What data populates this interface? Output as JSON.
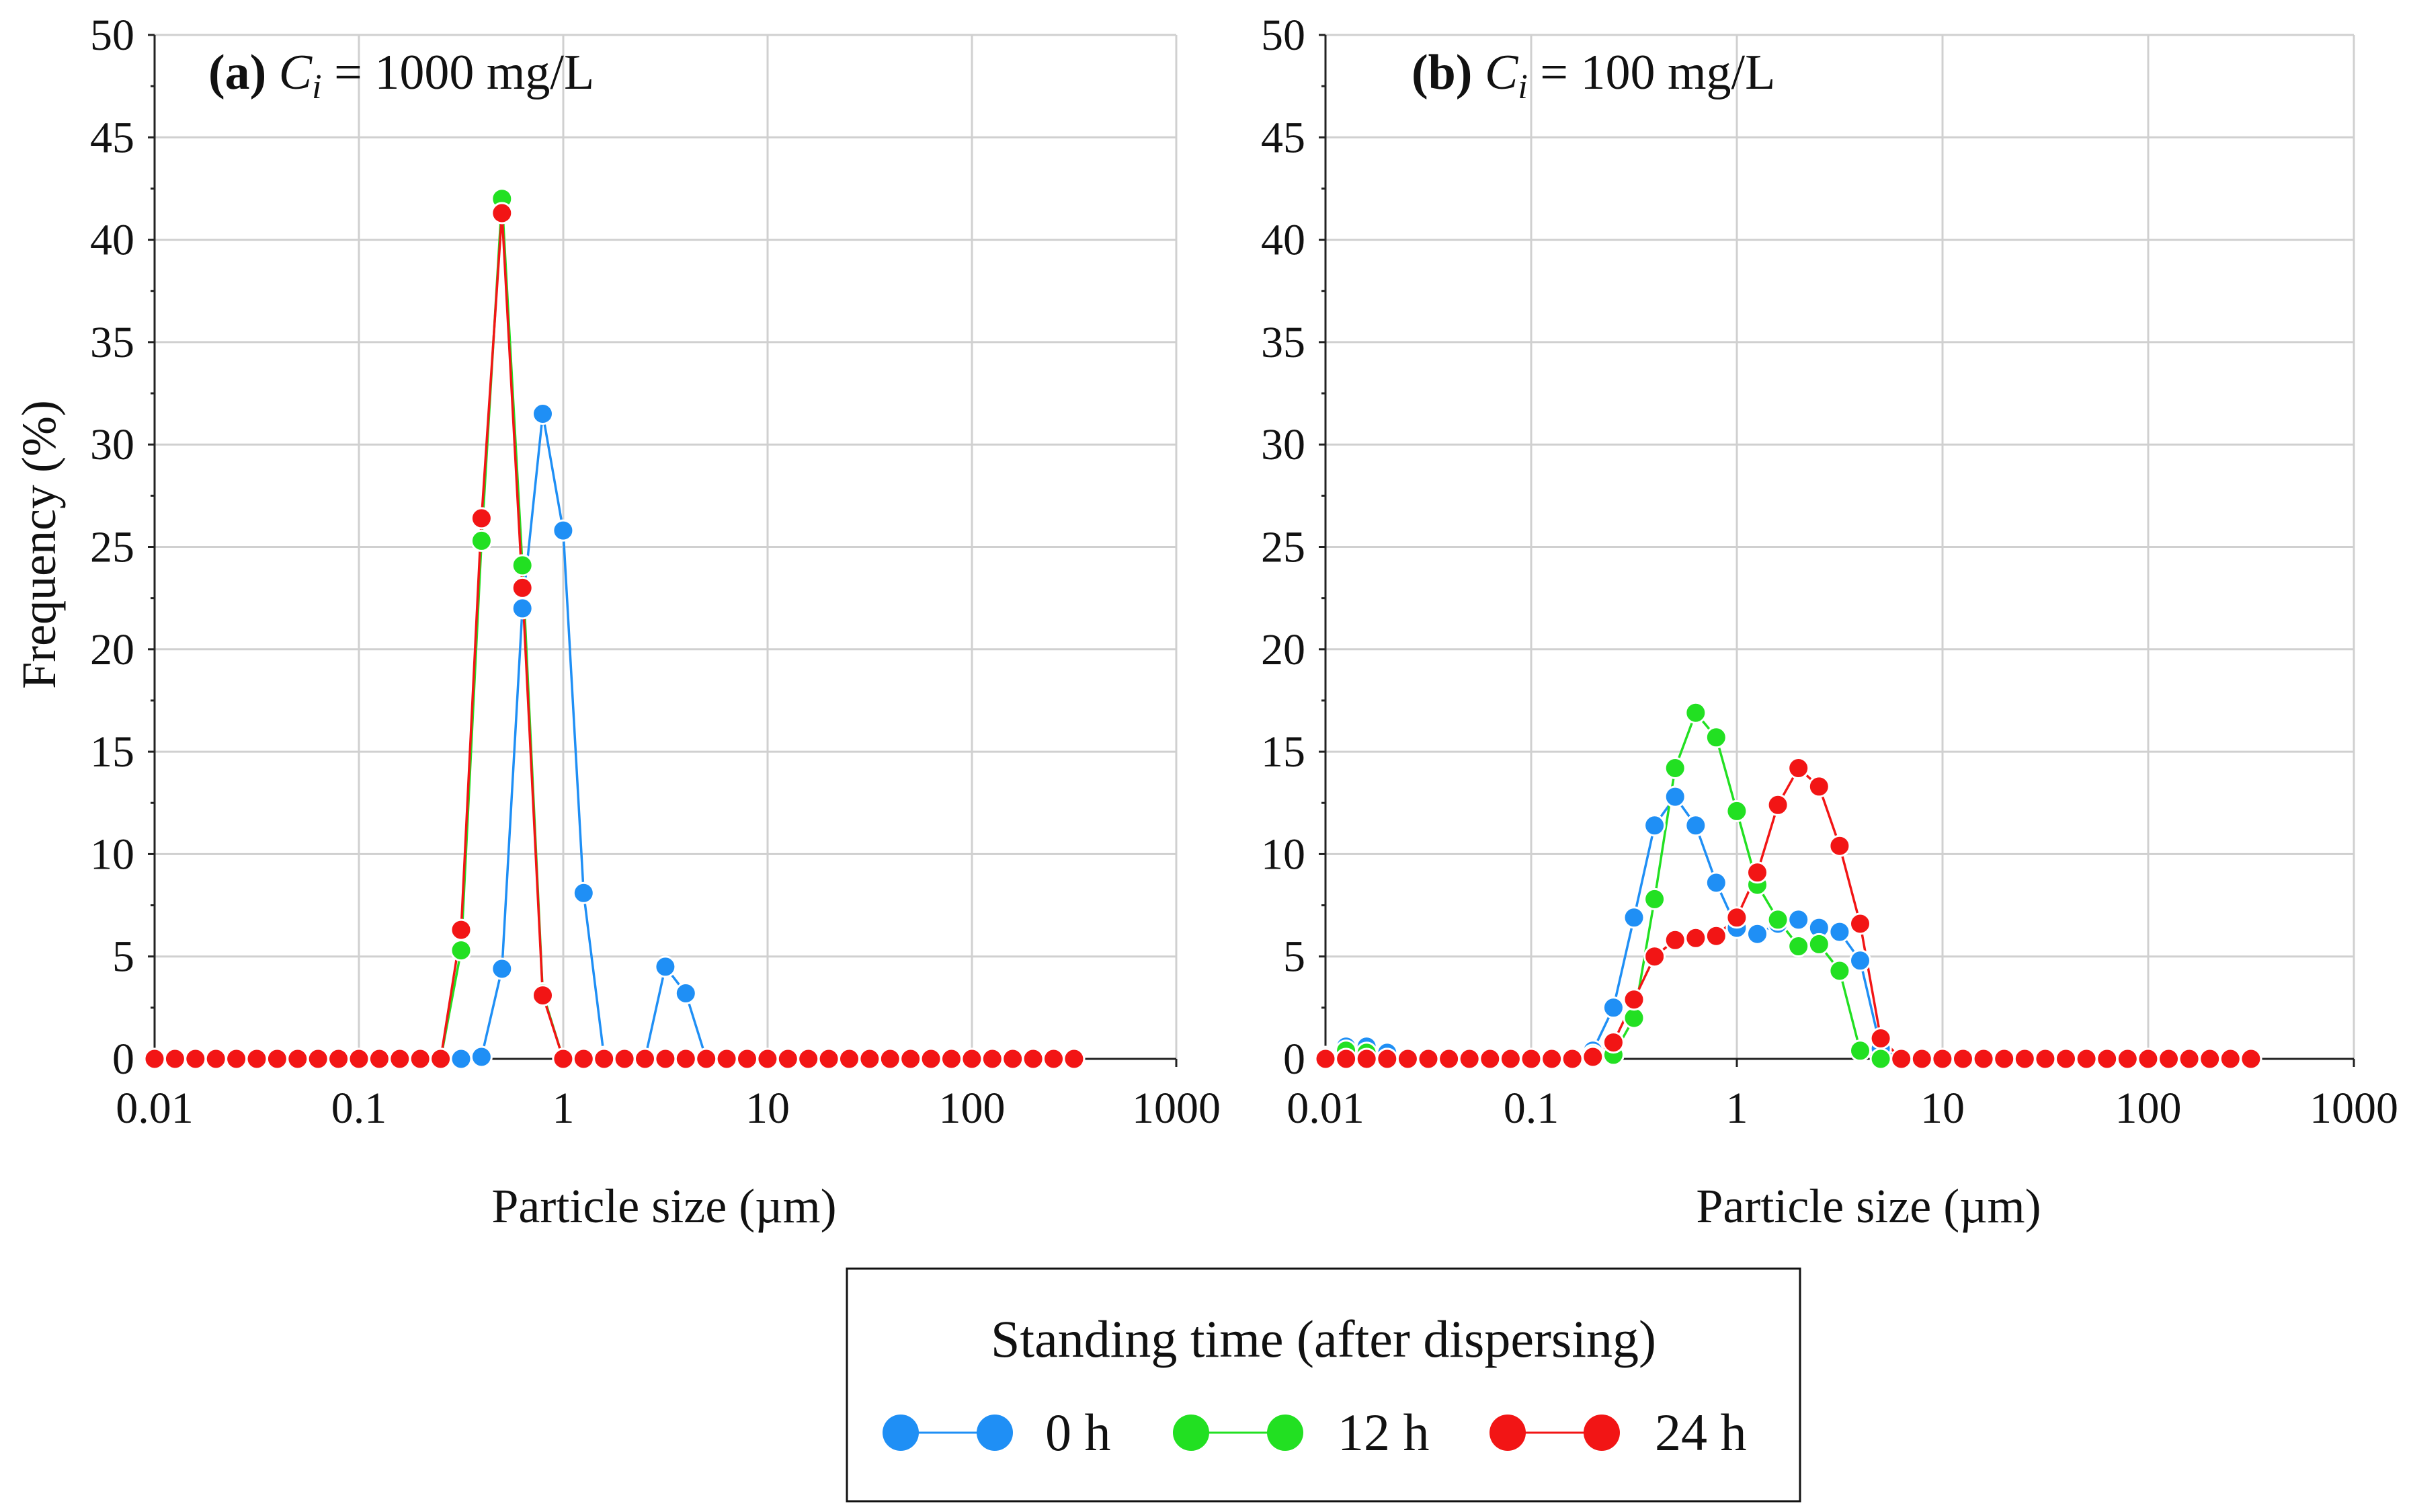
{
  "chart_data": [
    {
      "type": "line",
      "panel_tag": "(a)",
      "panel_symbol": "C",
      "panel_subscript": "i",
      "panel_value": " = 1000 mg/L",
      "xscale": "log",
      "xlim": [
        0.01,
        1000
      ],
      "ylim": [
        0,
        50
      ],
      "yticks": [
        "0",
        "5",
        "10",
        "15",
        "20",
        "25",
        "30",
        "35",
        "40",
        "45",
        "50"
      ],
      "xticks": [
        "0.01",
        "0.1",
        "1",
        "10",
        "100",
        "1000"
      ],
      "xlabel": "Particle size (µm)",
      "ylabel": "Frequency (%)",
      "x_min": 0.01,
      "x_step_ratio": 1.2589,
      "x_count": 46,
      "series": [
        {
          "name": "0 h",
          "color": "#1f8ff5",
          "values": [
            0,
            0,
            0,
            0,
            0,
            0,
            0,
            0,
            0,
            0,
            0,
            0,
            0,
            0,
            0,
            0,
            0.1,
            4.4,
            22,
            31.5,
            25.8,
            8.1,
            0.1,
            0,
            0,
            4.5,
            3.2,
            0,
            0,
            0,
            0,
            0,
            0,
            0,
            0,
            0,
            0,
            0,
            0,
            0,
            0,
            0,
            0,
            0,
            0,
            0
          ]
        },
        {
          "name": "12 h",
          "color": "#22e022",
          "values": [
            0,
            0,
            0,
            0,
            0,
            0,
            0,
            0,
            0,
            0,
            0,
            0,
            0,
            0,
            0,
            5.3,
            25.3,
            42,
            24.1,
            3.2,
            0,
            0,
            0,
            0,
            0,
            0,
            0,
            0,
            0,
            0,
            0,
            0,
            0,
            0,
            0,
            0,
            0,
            0,
            0,
            0,
            0,
            0,
            0,
            0,
            0,
            0
          ]
        },
        {
          "name": "24 h",
          "color": "#f21515",
          "values": [
            0,
            0,
            0,
            0,
            0,
            0,
            0,
            0,
            0,
            0,
            0,
            0,
            0,
            0,
            0,
            6.3,
            26.4,
            41.3,
            23,
            3.1,
            0,
            0,
            0,
            0,
            0,
            0,
            0,
            0,
            0,
            0,
            0,
            0,
            0,
            0,
            0,
            0,
            0,
            0,
            0,
            0,
            0,
            0,
            0,
            0,
            0,
            0
          ]
        }
      ]
    },
    {
      "type": "line",
      "panel_tag": "(b)",
      "panel_symbol": "C",
      "panel_subscript": "i",
      "panel_value": " = 100 mg/L",
      "xscale": "log",
      "xlim": [
        0.01,
        1000
      ],
      "ylim": [
        0,
        50
      ],
      "yticks": [
        "0",
        "5",
        "10",
        "15",
        "20",
        "25",
        "30",
        "35",
        "40",
        "45",
        "50"
      ],
      "xticks": [
        "0.01",
        "0.1",
        "1",
        "10",
        "100",
        "1000"
      ],
      "xlabel": "Particle size (µm)",
      "ylabel": "",
      "x_min": 0.01,
      "x_step_ratio": 1.2589,
      "x_count": 46,
      "series": [
        {
          "name": "0 h",
          "color": "#1f8ff5",
          "values": [
            0.1,
            0.6,
            0.6,
            0.3,
            0,
            0,
            0,
            0,
            0,
            0,
            0,
            0,
            0,
            0.4,
            2.5,
            6.9,
            11.4,
            12.8,
            11.4,
            8.6,
            6.4,
            6.1,
            6.6,
            6.8,
            6.4,
            6.2,
            4.8,
            0.5,
            0,
            0,
            0,
            0,
            0,
            0,
            0,
            0,
            0,
            0,
            0,
            0,
            0,
            0,
            0,
            0,
            0,
            0
          ]
        },
        {
          "name": "12 h",
          "color": "#22e022",
          "values": [
            0,
            0.4,
            0.3,
            0,
            0,
            0,
            0,
            0,
            0,
            0,
            0,
            0,
            0,
            0.2,
            0.2,
            2,
            7.8,
            14.2,
            16.9,
            15.7,
            12.1,
            8.5,
            6.8,
            5.5,
            5.6,
            4.3,
            0.4,
            0,
            0,
            0,
            0,
            0,
            0,
            0,
            0,
            0,
            0,
            0,
            0,
            0,
            0,
            0,
            0,
            0,
            0,
            0
          ]
        },
        {
          "name": "24 h",
          "color": "#f21515",
          "values": [
            0,
            0,
            0,
            0,
            0,
            0,
            0,
            0,
            0,
            0,
            0,
            0,
            0,
            0.1,
            0.8,
            2.9,
            5,
            5.8,
            5.9,
            6,
            6.9,
            9.1,
            12.4,
            14.2,
            13.3,
            10.4,
            6.6,
            1,
            0,
            0,
            0,
            0,
            0,
            0,
            0,
            0,
            0,
            0,
            0,
            0,
            0,
            0,
            0,
            0,
            0,
            0
          ]
        }
      ]
    }
  ],
  "legend": {
    "title": "Standing time (after dispersing)",
    "items": [
      {
        "label": "0 h",
        "color": "#1f8ff5"
      },
      {
        "label": "12 h",
        "color": "#22e022"
      },
      {
        "label": "24 h",
        "color": "#f21515"
      }
    ]
  }
}
